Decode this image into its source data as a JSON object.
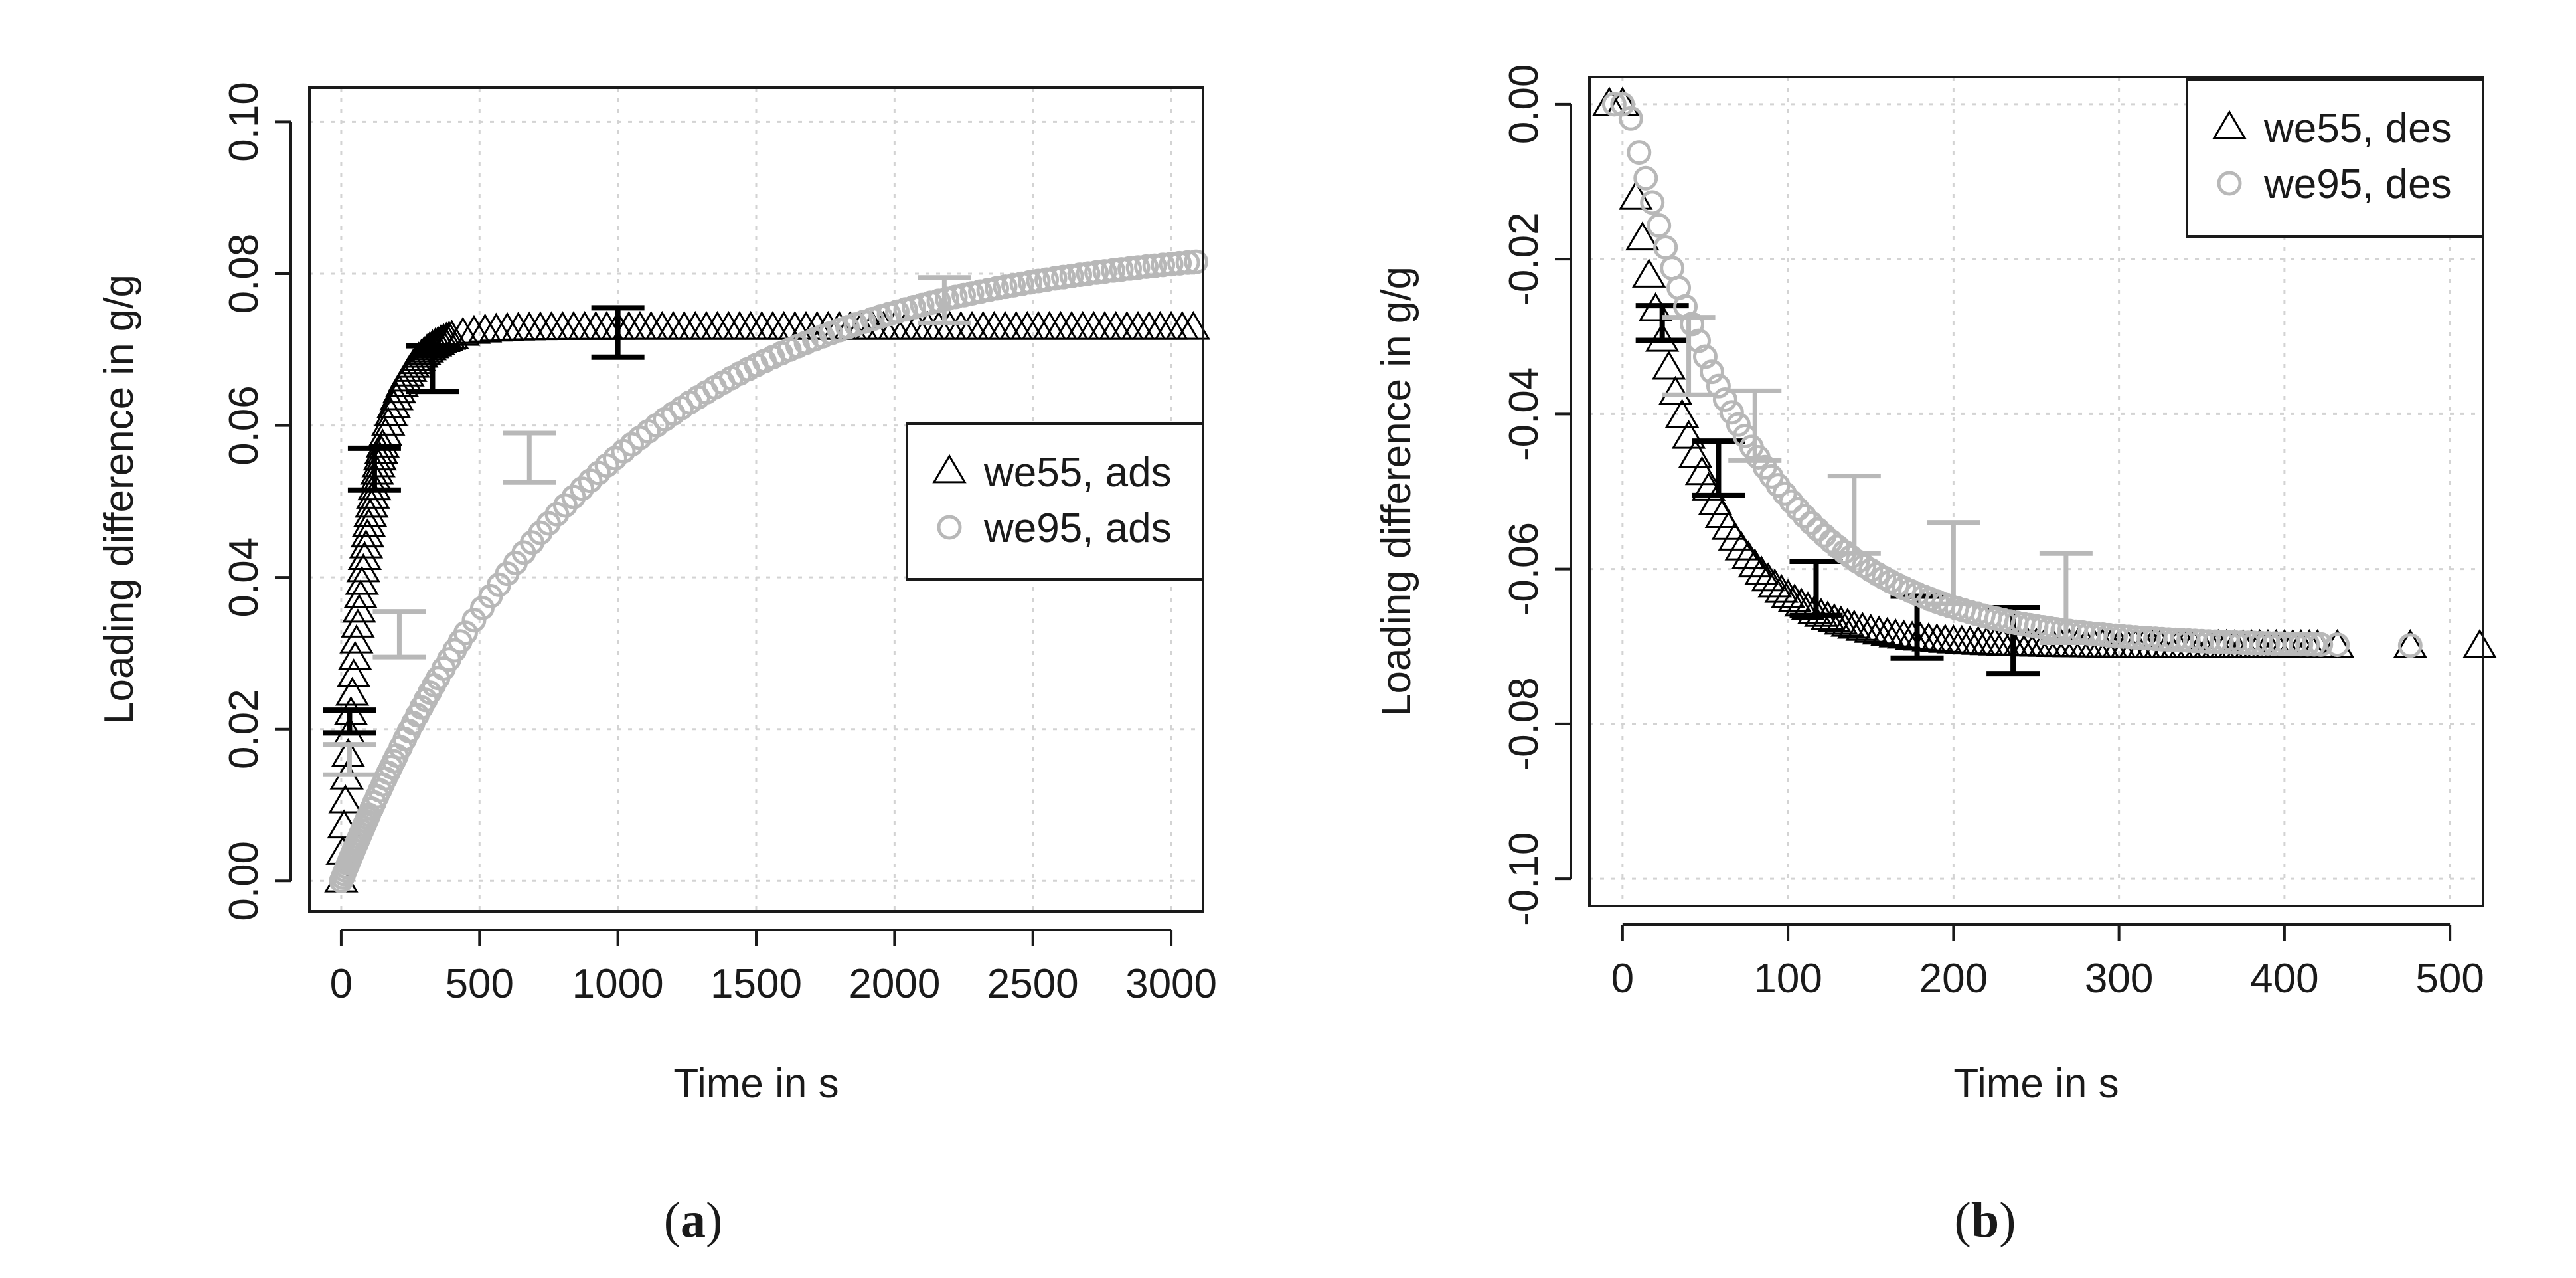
{
  "figure": {
    "panels": [
      {
        "id": "a",
        "caption_open": "(",
        "caption_letter": "a",
        "caption_close": ")"
      },
      {
        "id": "b",
        "caption_open": "(",
        "caption_letter": "b",
        "caption_close": ")"
      }
    ]
  },
  "chart_data": [
    {
      "type": "scatter",
      "panel": "a",
      "xlabel": "Time in s",
      "ylabel": "Loading difference in g/g",
      "xlim": [
        -115,
        3115
      ],
      "ylim": [
        -0.004,
        0.1045
      ],
      "x_ticks": [
        0,
        500,
        1000,
        1500,
        2000,
        2500,
        3000
      ],
      "x_tick_labels": [
        "0",
        "500",
        "1000",
        "1500",
        "2000",
        "2500",
        "3000"
      ],
      "y_ticks": [
        0.0,
        0.02,
        0.04,
        0.06,
        0.08,
        0.1
      ],
      "y_tick_labels": [
        "0.00",
        "0.02",
        "0.04",
        "0.06",
        "0.08",
        "0.10"
      ],
      "grid": true,
      "legend": {
        "placement": "right-middle",
        "entries": [
          {
            "label": "we55, ads",
            "marker": "triangle",
            "color": "#000000"
          },
          {
            "label": "we95, ads",
            "marker": "circle",
            "color": "#b8b8b8"
          }
        ]
      },
      "series": [
        {
          "name": "we55, ads",
          "marker": "triangle",
          "color": "#000000",
          "model": {
            "kind": "exp-rise",
            "y0": 0.0,
            "yinf": 0.0728,
            "tau": 97
          },
          "x": [
            0,
            5,
            10,
            15,
            20,
            25,
            30,
            35,
            40,
            45,
            50,
            55,
            60,
            65,
            70,
            75,
            80,
            85,
            90,
            95,
            100,
            105,
            110,
            115,
            120,
            125,
            130,
            135,
            140,
            145,
            150,
            160,
            170,
            180,
            190,
            200,
            210,
            220,
            230,
            240,
            250,
            260,
            270,
            280,
            290,
            300,
            310,
            320,
            330,
            340,
            350,
            360,
            370,
            380,
            390,
            400,
            440,
            480,
            520,
            560,
            600,
            640,
            680,
            720,
            760,
            800,
            840,
            880,
            920,
            960,
            1000,
            1040,
            1080,
            1120,
            1160,
            1200,
            1240,
            1280,
            1320,
            1360,
            1400,
            1440,
            1480,
            1520,
            1560,
            1600,
            1640,
            1680,
            1720,
            1760,
            1800,
            1840,
            1880,
            1920,
            1960,
            2000,
            2040,
            2080,
            2120,
            2160,
            2200,
            2240,
            2280,
            2320,
            2360,
            2400,
            2440,
            2480,
            2520,
            2560,
            2600,
            2640,
            2680,
            2720,
            2760,
            2800,
            2840,
            2880,
            2920,
            2960,
            3000,
            3040,
            3080
          ],
          "error_bars": [
            {
              "x": 30,
              "lower": 0.0195,
              "upper": 0.0225
            },
            {
              "x": 120,
              "lower": 0.0515,
              "upper": 0.057
            },
            {
              "x": 330,
              "lower": 0.0645,
              "upper": 0.0705
            },
            {
              "x": 1000,
              "lower": 0.069,
              "upper": 0.0755
            }
          ]
        },
        {
          "name": "we95, ads",
          "marker": "circle",
          "color": "#b8b8b8",
          "model": {
            "kind": "exp-rise",
            "y0": 0.0,
            "yinf": 0.0845,
            "tau": 920
          },
          "x_note": "fast early rise then slow approach; values from ~0 to 0.081 at 3100 s",
          "x": [
            0,
            5,
            10,
            15,
            20,
            25,
            30,
            35,
            40,
            45,
            50,
            55,
            60,
            65,
            70,
            75,
            80,
            85,
            90,
            95,
            100,
            110,
            120,
            130,
            140,
            150,
            160,
            170,
            180,
            190,
            200,
            215,
            230,
            245,
            260,
            275,
            290,
            305,
            320,
            335,
            350,
            370,
            390,
            410,
            430,
            450,
            480,
            510,
            540,
            570,
            600,
            630,
            660,
            690,
            720,
            750,
            780,
            810,
            840,
            870,
            900,
            930,
            960,
            990,
            1020,
            1050,
            1080,
            1110,
            1140,
            1170,
            1200,
            1230,
            1260,
            1290,
            1320,
            1350,
            1380,
            1410,
            1440,
            1470,
            1500,
            1530,
            1560,
            1590,
            1620,
            1650,
            1680,
            1710,
            1740,
            1770,
            1800,
            1830,
            1860,
            1890,
            1920,
            1950,
            1980,
            2010,
            2040,
            2070,
            2100,
            2130,
            2160,
            2190,
            2220,
            2250,
            2280,
            2310,
            2340,
            2370,
            2400,
            2430,
            2460,
            2490,
            2520,
            2550,
            2580,
            2610,
            2640,
            2670,
            2700,
            2730,
            2760,
            2790,
            2820,
            2850,
            2880,
            2910,
            2940,
            2970,
            3000,
            3030,
            3060,
            3090
          ],
          "error_bars": [
            {
              "x": 30,
              "lower": 0.014,
              "upper": 0.018
            },
            {
              "x": 210,
              "lower": 0.0295,
              "upper": 0.0355
            },
            {
              "x": 680,
              "lower": 0.0525,
              "upper": 0.059
            },
            {
              "x": 2180,
              "lower": 0.0735,
              "upper": 0.0795
            }
          ]
        }
      ]
    },
    {
      "type": "scatter",
      "panel": "b",
      "xlabel": "Time in s",
      "ylabel": "Loading difference in g/g",
      "xlim": [
        -20,
        520
      ],
      "ylim": [
        -0.1035,
        0.0035
      ],
      "x_ticks": [
        0,
        100,
        200,
        300,
        400,
        500
      ],
      "x_tick_labels": [
        "0",
        "100",
        "200",
        "300",
        "400",
        "500"
      ],
      "y_ticks": [
        0.0,
        -0.02,
        -0.04,
        -0.06,
        -0.08,
        -0.1
      ],
      "y_tick_labels": [
        "0.00",
        "-0.02",
        "-0.04",
        "-0.06",
        "-0.08",
        "-0.10"
      ],
      "grid": true,
      "legend": {
        "placement": "top-right",
        "entries": [
          {
            "label": "we55, des",
            "marker": "triangle",
            "color": "#000000"
          },
          {
            "label": "we95, des",
            "marker": "circle",
            "color": "#b8b8b8"
          }
        ]
      },
      "series": [
        {
          "name": "we55, des",
          "marker": "triangle",
          "color": "#000000",
          "model": {
            "kind": "exp-decay-delayed",
            "y0": 0.0,
            "yinf": -0.07,
            "tau": 42,
            "delay": 0
          },
          "x": [
            -8,
            0,
            8,
            12,
            16,
            20,
            24,
            28,
            32,
            36,
            40,
            44,
            48,
            52,
            56,
            60,
            64,
            68,
            72,
            76,
            80,
            84,
            88,
            92,
            96,
            100,
            104,
            108,
            112,
            116,
            120,
            124,
            128,
            132,
            136,
            140,
            145,
            150,
            155,
            160,
            165,
            170,
            175,
            180,
            185,
            190,
            195,
            200,
            205,
            210,
            215,
            220,
            225,
            230,
            235,
            240,
            245,
            250,
            255,
            260,
            265,
            270,
            275,
            280,
            285,
            290,
            295,
            300,
            305,
            310,
            315,
            320,
            325,
            330,
            335,
            340,
            345,
            350,
            355,
            360,
            365,
            370,
            375,
            380,
            385,
            390,
            395,
            400,
            405,
            410,
            415,
            420,
            432,
            476,
            518
          ],
          "error_bars": [
            {
              "x": 24,
              "lower": -0.0305,
              "upper": -0.026
            },
            {
              "x": 58,
              "lower": -0.0505,
              "upper": -0.0435
            },
            {
              "x": 117,
              "lower": -0.066,
              "upper": -0.059
            },
            {
              "x": 178,
              "lower": -0.0715,
              "upper": -0.0635
            },
            {
              "x": 236,
              "lower": -0.0735,
              "upper": -0.065
            }
          ]
        },
        {
          "name": "we95, des",
          "marker": "circle",
          "color": "#b8b8b8",
          "model": {
            "kind": "exp-decay-delayed",
            "y0": 0.0,
            "yinf": -0.07,
            "tau": 75,
            "delay": 3
          },
          "x": [
            -5,
            0,
            5,
            10,
            14,
            18,
            22,
            26,
            30,
            34,
            38,
            42,
            46,
            50,
            54,
            58,
            62,
            66,
            70,
            74,
            78,
            82,
            86,
            90,
            94,
            98,
            102,
            106,
            110,
            114,
            118,
            122,
            126,
            130,
            134,
            138,
            142,
            146,
            150,
            154,
            158,
            162,
            166,
            170,
            174,
            178,
            182,
            186,
            190,
            194,
            198,
            202,
            206,
            210,
            214,
            218,
            222,
            226,
            230,
            234,
            238,
            242,
            246,
            250,
            254,
            258,
            262,
            266,
            270,
            274,
            278,
            282,
            286,
            290,
            294,
            298,
            302,
            306,
            310,
            314,
            318,
            322,
            326,
            330,
            334,
            338,
            342,
            346,
            350,
            354,
            358,
            362,
            366,
            370,
            374,
            378,
            382,
            386,
            390,
            394,
            398,
            402,
            406,
            410,
            414,
            418,
            422,
            432,
            476
          ],
          "error_bars": [
            {
              "x": 40,
              "lower": -0.0375,
              "upper": -0.0275
            },
            {
              "x": 80,
              "lower": -0.046,
              "upper": -0.037
            },
            {
              "x": 140,
              "lower": -0.058,
              "upper": -0.048
            },
            {
              "x": 200,
              "lower": -0.0645,
              "upper": -0.054
            },
            {
              "x": 268,
              "lower": -0.0695,
              "upper": -0.058
            }
          ]
        }
      ]
    }
  ]
}
